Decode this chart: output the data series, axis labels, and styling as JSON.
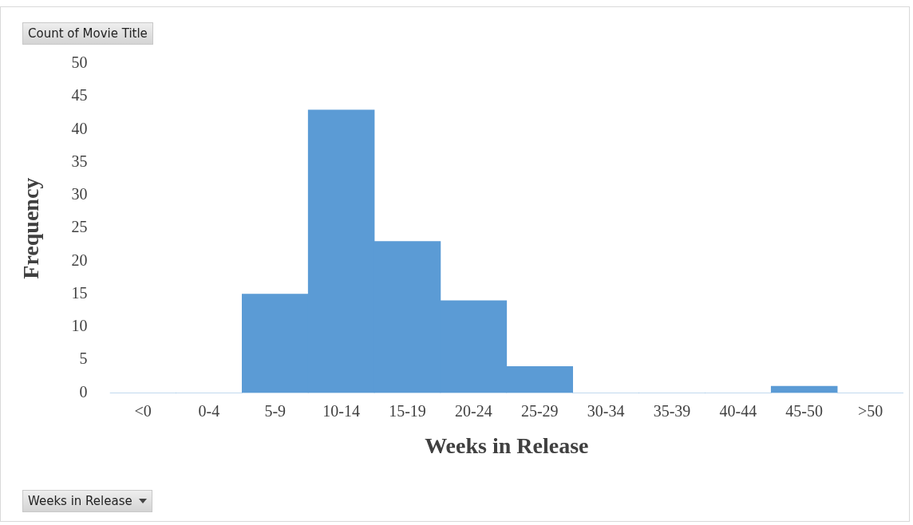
{
  "chart_data": {
    "type": "bar",
    "xlabel": "Weeks in Release",
    "ylabel": "Frequency",
    "categories": [
      "<0",
      "0-4",
      "5-9",
      "10-14",
      "15-19",
      "20-24",
      "25-29",
      "30-34",
      "35-39",
      "40-44",
      "45-50",
      ">50"
    ],
    "values": [
      0,
      0,
      15,
      43,
      23,
      14,
      4,
      0,
      0,
      0,
      1,
      0
    ],
    "color": "#5b9bd5",
    "ylim": [
      0,
      50
    ],
    "yticks": [
      0,
      5,
      10,
      15,
      20,
      25,
      30,
      35,
      40,
      45,
      50
    ],
    "annotations": [
      "Count of Movie Title",
      "Weeks in Release"
    ]
  }
}
